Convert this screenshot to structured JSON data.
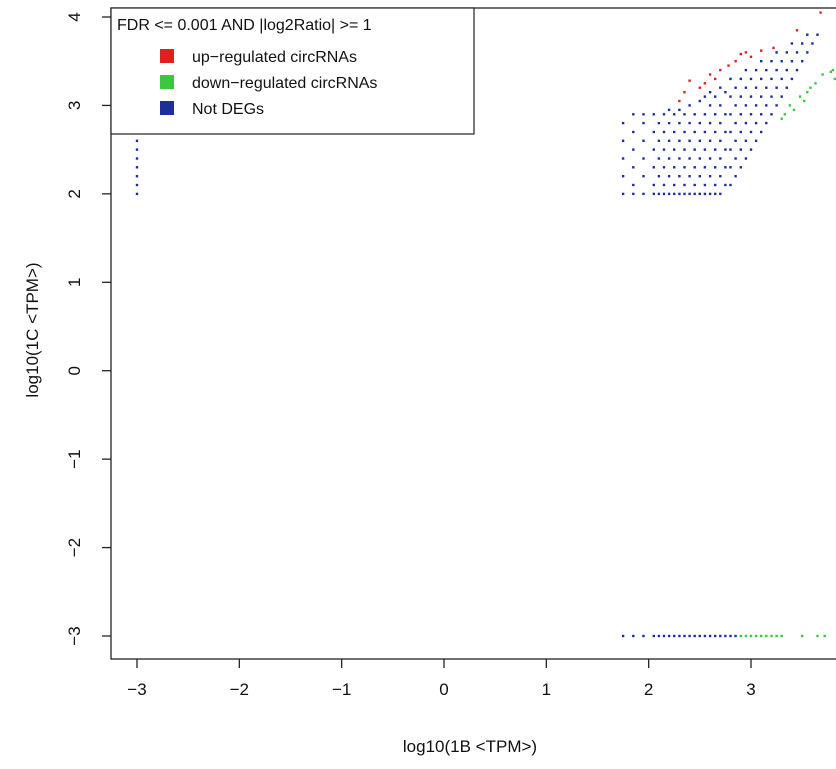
{
  "chart_data": {
    "type": "scatter",
    "xlabel": "log10(1B <TPM>)",
    "ylabel": "log10(1C <TPM>)",
    "xlim": [
      -3.3,
      3.85
    ],
    "ylim": [
      -3.3,
      4.1
    ],
    "x_ticks": [
      -3,
      -2,
      -1,
      0,
      1,
      2,
      3
    ],
    "y_ticks": [
      -3,
      -2,
      -1,
      0,
      1,
      2,
      3,
      4
    ],
    "grid": false,
    "legend": {
      "title": "FDR <=  0.001  AND |log2Ratio| >=  1",
      "placement": "top-left",
      "entries": [
        {
          "label": "up−regulated circRNAs",
          "color": "#e02020"
        },
        {
          "label": "down−regulated circRNAs",
          "color": "#3cc83c"
        },
        {
          "label": "Not DEGs",
          "color": "#1c2f9c"
        }
      ]
    },
    "series": [
      {
        "name": "up−regulated circRNAs",
        "color": "#e02020",
        "points": [
          [
            -3,
            3.4
          ],
          [
            -3,
            3.3
          ],
          [
            -3,
            3.2
          ],
          [
            -3,
            3.1
          ],
          [
            -3,
            3.0
          ],
          [
            -3,
            2.9
          ],
          [
            2.3,
            3.05
          ],
          [
            2.35,
            3.15
          ],
          [
            2.4,
            3.28
          ],
          [
            2.5,
            3.2
          ],
          [
            2.55,
            3.25
          ],
          [
            2.6,
            3.35
          ],
          [
            2.65,
            3.3
          ],
          [
            2.7,
            3.4
          ],
          [
            2.78,
            3.45
          ],
          [
            2.85,
            3.5
          ],
          [
            2.9,
            3.58
          ],
          [
            2.95,
            3.6
          ],
          [
            3.0,
            3.55
          ],
          [
            3.1,
            3.62
          ],
          [
            3.22,
            3.65
          ],
          [
            3.45,
            3.85
          ],
          [
            3.68,
            4.05
          ]
        ]
      },
      {
        "name": "down−regulated circRNAs",
        "color": "#3cc83c",
        "points": [
          [
            2.9,
            -3
          ],
          [
            2.95,
            -3
          ],
          [
            3.0,
            -3
          ],
          [
            3.05,
            -3
          ],
          [
            3.1,
            -3
          ],
          [
            3.15,
            -3
          ],
          [
            3.2,
            -3
          ],
          [
            3.25,
            -3
          ],
          [
            3.3,
            -3
          ],
          [
            3.5,
            -3
          ],
          [
            3.65,
            -3
          ],
          [
            3.72,
            -3
          ],
          [
            3.3,
            2.85
          ],
          [
            3.33,
            2.9
          ],
          [
            3.38,
            3.0
          ],
          [
            3.42,
            2.95
          ],
          [
            3.48,
            3.1
          ],
          [
            3.52,
            3.05
          ],
          [
            3.58,
            3.2
          ],
          [
            3.63,
            3.25
          ],
          [
            3.7,
            3.35
          ],
          [
            3.78,
            3.38
          ],
          [
            3.82,
            3.3
          ],
          [
            3.8,
            3.4
          ],
          [
            3.55,
            3.15
          ]
        ]
      },
      {
        "name": "Not DEGs",
        "color": "#1c2f9c",
        "points": [
          [
            -3,
            2.0
          ],
          [
            -3,
            2.1
          ],
          [
            -3,
            2.2
          ],
          [
            -3,
            2.3
          ],
          [
            -3,
            2.4
          ],
          [
            -3,
            2.5
          ],
          [
            -3,
            2.6
          ],
          [
            -3,
            2.7
          ],
          [
            -3,
            2.8
          ],
          [
            1.75,
            -3
          ],
          [
            1.85,
            -3
          ],
          [
            1.95,
            -3
          ],
          [
            2.05,
            -3
          ],
          [
            2.1,
            -3
          ],
          [
            2.15,
            -3
          ],
          [
            2.2,
            -3
          ],
          [
            2.25,
            -3
          ],
          [
            2.3,
            -3
          ],
          [
            2.35,
            -3
          ],
          [
            2.4,
            -3
          ],
          [
            2.45,
            -3
          ],
          [
            2.5,
            -3
          ],
          [
            2.55,
            -3
          ],
          [
            2.6,
            -3
          ],
          [
            2.65,
            -3
          ],
          [
            2.7,
            -3
          ],
          [
            2.75,
            -3
          ],
          [
            2.8,
            -3
          ],
          [
            2.85,
            -3
          ],
          [
            1.75,
            2.0
          ],
          [
            1.75,
            2.2
          ],
          [
            1.75,
            2.4
          ],
          [
            1.75,
            2.6
          ],
          [
            1.75,
            2.8
          ],
          [
            1.85,
            2.0
          ],
          [
            1.85,
            2.1
          ],
          [
            1.85,
            2.3
          ],
          [
            1.85,
            2.5
          ],
          [
            1.85,
            2.7
          ],
          [
            1.85,
            2.9
          ],
          [
            1.95,
            2.0
          ],
          [
            1.95,
            2.2
          ],
          [
            1.95,
            2.4
          ],
          [
            1.95,
            2.6
          ],
          [
            1.95,
            2.8
          ],
          [
            1.95,
            2.9
          ],
          [
            2.05,
            2.0
          ],
          [
            2.05,
            2.1
          ],
          [
            2.05,
            2.3
          ],
          [
            2.05,
            2.5
          ],
          [
            2.05,
            2.7
          ],
          [
            2.05,
            2.9
          ],
          [
            2.1,
            2.0
          ],
          [
            2.1,
            2.2
          ],
          [
            2.1,
            2.4
          ],
          [
            2.1,
            2.6
          ],
          [
            2.1,
            2.8
          ],
          [
            2.15,
            2.0
          ],
          [
            2.15,
            2.1
          ],
          [
            2.15,
            2.3
          ],
          [
            2.15,
            2.5
          ],
          [
            2.15,
            2.7
          ],
          [
            2.15,
            2.9
          ],
          [
            2.2,
            2.0
          ],
          [
            2.2,
            2.2
          ],
          [
            2.2,
            2.4
          ],
          [
            2.2,
            2.6
          ],
          [
            2.2,
            2.8
          ],
          [
            2.2,
            2.95
          ],
          [
            2.25,
            2.0
          ],
          [
            2.25,
            2.1
          ],
          [
            2.25,
            2.3
          ],
          [
            2.25,
            2.5
          ],
          [
            2.25,
            2.7
          ],
          [
            2.25,
            2.9
          ],
          [
            2.3,
            2.0
          ],
          [
            2.3,
            2.2
          ],
          [
            2.3,
            2.4
          ],
          [
            2.3,
            2.6
          ],
          [
            2.3,
            2.8
          ],
          [
            2.3,
            2.95
          ],
          [
            2.35,
            2.0
          ],
          [
            2.35,
            2.1
          ],
          [
            2.35,
            2.3
          ],
          [
            2.35,
            2.5
          ],
          [
            2.35,
            2.7
          ],
          [
            2.35,
            2.9
          ],
          [
            2.4,
            2.0
          ],
          [
            2.4,
            2.2
          ],
          [
            2.4,
            2.4
          ],
          [
            2.4,
            2.6
          ],
          [
            2.4,
            2.8
          ],
          [
            2.4,
            3.0
          ],
          [
            2.45,
            2.0
          ],
          [
            2.45,
            2.1
          ],
          [
            2.45,
            2.3
          ],
          [
            2.45,
            2.5
          ],
          [
            2.45,
            2.7
          ],
          [
            2.45,
            2.9
          ],
          [
            2.5,
            2.0
          ],
          [
            2.5,
            2.2
          ],
          [
            2.5,
            2.4
          ],
          [
            2.5,
            2.6
          ],
          [
            2.5,
            2.8
          ],
          [
            2.5,
            3.05
          ],
          [
            2.55,
            2.0
          ],
          [
            2.55,
            2.1
          ],
          [
            2.55,
            2.3
          ],
          [
            2.55,
            2.5
          ],
          [
            2.55,
            2.7
          ],
          [
            2.55,
            2.9
          ],
          [
            2.55,
            3.1
          ],
          [
            2.6,
            2.0
          ],
          [
            2.6,
            2.2
          ],
          [
            2.6,
            2.4
          ],
          [
            2.6,
            2.6
          ],
          [
            2.6,
            2.8
          ],
          [
            2.6,
            3.0
          ],
          [
            2.6,
            3.15
          ],
          [
            2.65,
            2.0
          ],
          [
            2.65,
            2.1
          ],
          [
            2.65,
            2.3
          ],
          [
            2.65,
            2.5
          ],
          [
            2.65,
            2.7
          ],
          [
            2.65,
            2.9
          ],
          [
            2.65,
            3.1
          ],
          [
            2.7,
            2.0
          ],
          [
            2.7,
            2.2
          ],
          [
            2.7,
            2.4
          ],
          [
            2.7,
            2.6
          ],
          [
            2.7,
            2.8
          ],
          [
            2.7,
            3.0
          ],
          [
            2.7,
            3.2
          ],
          [
            2.75,
            2.1
          ],
          [
            2.75,
            2.3
          ],
          [
            2.75,
            2.5
          ],
          [
            2.75,
            2.7
          ],
          [
            2.75,
            2.9
          ],
          [
            2.75,
            3.15
          ],
          [
            2.8,
            2.1
          ],
          [
            2.8,
            2.3
          ],
          [
            2.8,
            2.5
          ],
          [
            2.8,
            2.7
          ],
          [
            2.8,
            2.9
          ],
          [
            2.8,
            3.1
          ],
          [
            2.8,
            3.3
          ],
          [
            2.85,
            2.2
          ],
          [
            2.85,
            2.4
          ],
          [
            2.85,
            2.6
          ],
          [
            2.85,
            2.8
          ],
          [
            2.85,
            3.0
          ],
          [
            2.85,
            3.2
          ],
          [
            2.9,
            2.3
          ],
          [
            2.9,
            2.5
          ],
          [
            2.9,
            2.7
          ],
          [
            2.9,
            2.9
          ],
          [
            2.9,
            3.1
          ],
          [
            2.9,
            3.3
          ],
          [
            2.95,
            2.4
          ],
          [
            2.95,
            2.6
          ],
          [
            2.95,
            2.8
          ],
          [
            2.95,
            3.0
          ],
          [
            2.95,
            3.2
          ],
          [
            2.95,
            3.4
          ],
          [
            3.0,
            2.5
          ],
          [
            3.0,
            2.7
          ],
          [
            3.0,
            2.9
          ],
          [
            3.0,
            3.1
          ],
          [
            3.0,
            3.3
          ],
          [
            3.05,
            2.6
          ],
          [
            3.05,
            2.8
          ],
          [
            3.05,
            3.0
          ],
          [
            3.05,
            3.2
          ],
          [
            3.05,
            3.4
          ],
          [
            3.1,
            2.7
          ],
          [
            3.1,
            2.9
          ],
          [
            3.1,
            3.1
          ],
          [
            3.1,
            3.3
          ],
          [
            3.1,
            3.5
          ],
          [
            3.15,
            2.8
          ],
          [
            3.15,
            3.0
          ],
          [
            3.15,
            3.2
          ],
          [
            3.15,
            3.4
          ],
          [
            3.2,
            2.9
          ],
          [
            3.2,
            3.1
          ],
          [
            3.2,
            3.3
          ],
          [
            3.2,
            3.5
          ],
          [
            3.25,
            3.0
          ],
          [
            3.25,
            3.2
          ],
          [
            3.25,
            3.4
          ],
          [
            3.25,
            3.6
          ],
          [
            3.3,
            3.1
          ],
          [
            3.3,
            3.3
          ],
          [
            3.3,
            3.5
          ],
          [
            3.35,
            3.2
          ],
          [
            3.35,
            3.4
          ],
          [
            3.35,
            3.6
          ],
          [
            3.4,
            3.3
          ],
          [
            3.4,
            3.5
          ],
          [
            3.4,
            3.7
          ],
          [
            3.45,
            3.4
          ],
          [
            3.45,
            3.6
          ],
          [
            3.5,
            3.5
          ],
          [
            3.5,
            3.7
          ],
          [
            3.55,
            3.6
          ],
          [
            3.55,
            3.8
          ],
          [
            3.6,
            3.7
          ],
          [
            3.65,
            3.8
          ]
        ]
      }
    ]
  }
}
